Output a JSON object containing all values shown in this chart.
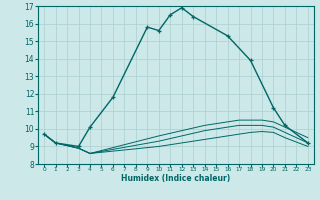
{
  "xlabel": "Humidex (Indice chaleur)",
  "xlim": [
    -0.5,
    23.5
  ],
  "ylim": [
    8,
    17
  ],
  "yticks": [
    8,
    9,
    10,
    11,
    12,
    13,
    14,
    15,
    16,
    17
  ],
  "xticks": [
    0,
    1,
    2,
    3,
    4,
    5,
    6,
    7,
    8,
    9,
    10,
    11,
    12,
    13,
    14,
    15,
    16,
    17,
    18,
    19,
    20,
    21,
    22,
    23
  ],
  "bg_color": "#cce8e8",
  "line_color": "#006666",
  "grid_color": "#aacfcf",
  "x_main": [
    0,
    1,
    3,
    4,
    6,
    9,
    10,
    11,
    12,
    13,
    16,
    18,
    20,
    21,
    23
  ],
  "y_main": [
    9.7,
    9.2,
    9.0,
    10.1,
    11.8,
    15.8,
    15.6,
    16.5,
    16.9,
    16.4,
    15.3,
    13.9,
    11.2,
    10.2,
    9.2
  ],
  "x_flat1": [
    0,
    1,
    3,
    4,
    10,
    11,
    12,
    13,
    14,
    15,
    16,
    17,
    18,
    19,
    20,
    21,
    23
  ],
  "y_flat1": [
    9.7,
    9.2,
    8.9,
    8.6,
    9.6,
    9.75,
    9.9,
    10.05,
    10.2,
    10.3,
    10.4,
    10.5,
    10.5,
    10.5,
    10.4,
    10.1,
    9.5
  ],
  "x_flat2": [
    0,
    1,
    3,
    4,
    10,
    11,
    12,
    13,
    14,
    15,
    16,
    17,
    18,
    19,
    20,
    21,
    23
  ],
  "y_flat2": [
    9.7,
    9.2,
    8.9,
    8.6,
    9.3,
    9.45,
    9.6,
    9.75,
    9.9,
    10.0,
    10.1,
    10.2,
    10.2,
    10.2,
    10.1,
    9.8,
    9.2
  ],
  "x_flat3": [
    0,
    1,
    3,
    4,
    10,
    11,
    12,
    13,
    14,
    15,
    16,
    17,
    18,
    19,
    20,
    21,
    23
  ],
  "y_flat3": [
    9.7,
    9.2,
    8.9,
    8.6,
    9.0,
    9.1,
    9.2,
    9.3,
    9.4,
    9.5,
    9.6,
    9.7,
    9.8,
    9.85,
    9.8,
    9.5,
    9.0
  ]
}
